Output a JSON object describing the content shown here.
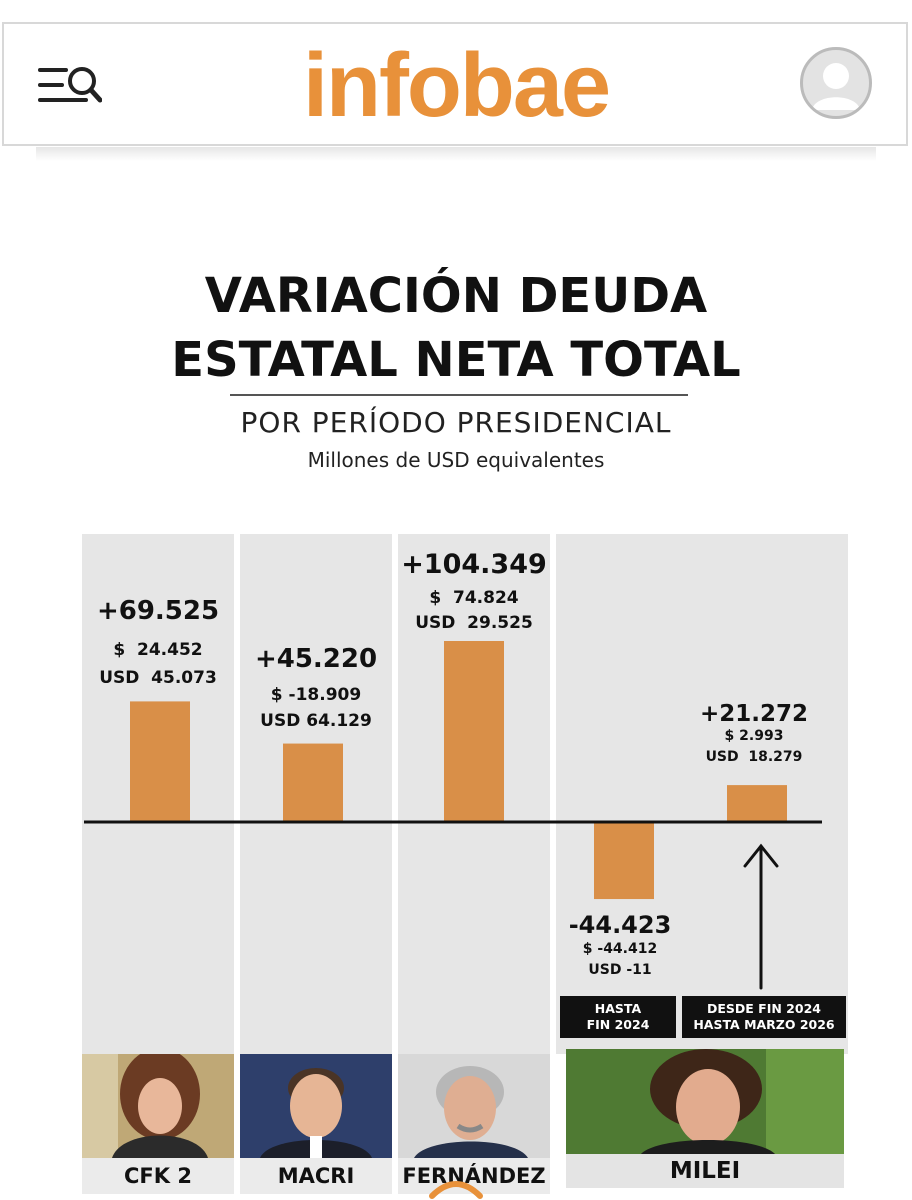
{
  "header": {
    "logo_text": "infobae",
    "menu_icon": "menu-search-icon",
    "avatar_icon": "user-avatar-icon",
    "brand_color": "#e8913a"
  },
  "chart_data": {
    "type": "bar",
    "title_line1": "VARIACIÓN DEUDA",
    "title_line2": "ESTATAL NETA TOTAL",
    "subtitle": "POR PERÍODO PRESIDENCIAL",
    "units": "Millones de USD equivalentes",
    "bar_color": "#d98f48",
    "baseline": 0,
    "ylim": [
      -60000,
      125000
    ],
    "categories": [
      "CFK 2",
      "MACRI",
      "FERNÁNDEZ",
      "MILEI",
      "MILEI"
    ],
    "bars": [
      {
        "category": "CFK 2",
        "value": 69525,
        "label": "+69.525",
        "ars": "$  24.452",
        "usd": "USD  45.073"
      },
      {
        "category": "MACRI",
        "value": 45220,
        "label": "+45.220",
        "ars": "$ -18.909",
        "usd": "USD 64.129"
      },
      {
        "category": "FERNÁNDEZ",
        "value": 104349,
        "label": "+104.349",
        "ars": "$  74.824",
        "usd": "USD  29.525"
      },
      {
        "category": "MILEI",
        "value": -44423,
        "label": "-44.423",
        "ars": "$ -44.412",
        "usd": "USD -11",
        "period_note": [
          "HASTA",
          "FIN 2024"
        ]
      },
      {
        "category": "MILEI",
        "value": 21272,
        "label": "+21.272",
        "ars": "$ 2.993",
        "usd": "USD  18.279",
        "period_note": [
          "DESDE FIN 2024",
          "HASTA MARZO 2026"
        ]
      }
    ],
    "presidents": [
      "CFK 2",
      "MACRI",
      "FERNÁNDEZ",
      "MILEI"
    ]
  }
}
